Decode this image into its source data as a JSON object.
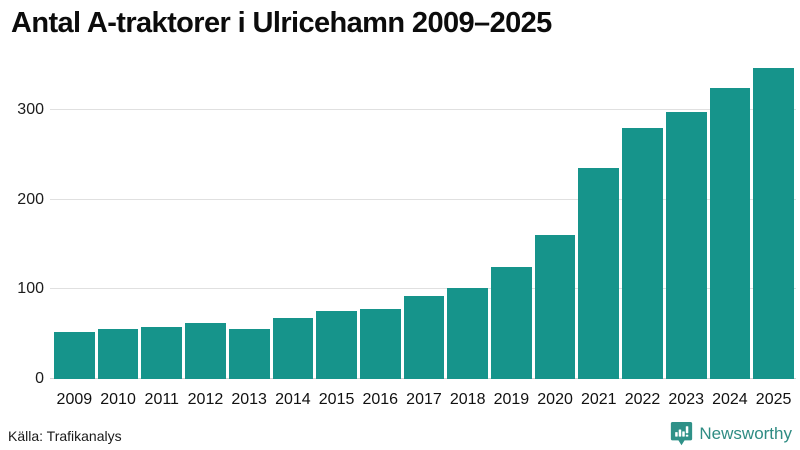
{
  "title": "Antal A-traktorer i Ulricehamn 2009–2025",
  "footer": {
    "source": "Källa: Trafikanalys",
    "brand": "Newsworthy"
  },
  "colors": {
    "bar": "#16948B",
    "brand": "#2F8C83",
    "grid": "#e0e0e0",
    "text": "#111111"
  },
  "chart_data": {
    "type": "bar",
    "title": "Antal A-traktorer i Ulricehamn 2009–2025",
    "categories": [
      "2009",
      "2010",
      "2011",
      "2012",
      "2013",
      "2014",
      "2015",
      "2016",
      "2017",
      "2018",
      "2019",
      "2020",
      "2021",
      "2022",
      "2023",
      "2024",
      "2025"
    ],
    "values": [
      52,
      56,
      58,
      62,
      56,
      68,
      76,
      78,
      92,
      102,
      125,
      160,
      235,
      280,
      298,
      324,
      347
    ],
    "xlabel": "",
    "ylabel": "",
    "ylim": [
      0,
      350
    ],
    "yticks": [
      0,
      100,
      200,
      300
    ],
    "grid": true,
    "legend": false,
    "bar_color": "#16948B",
    "source": "Källa: Trafikanalys"
  }
}
